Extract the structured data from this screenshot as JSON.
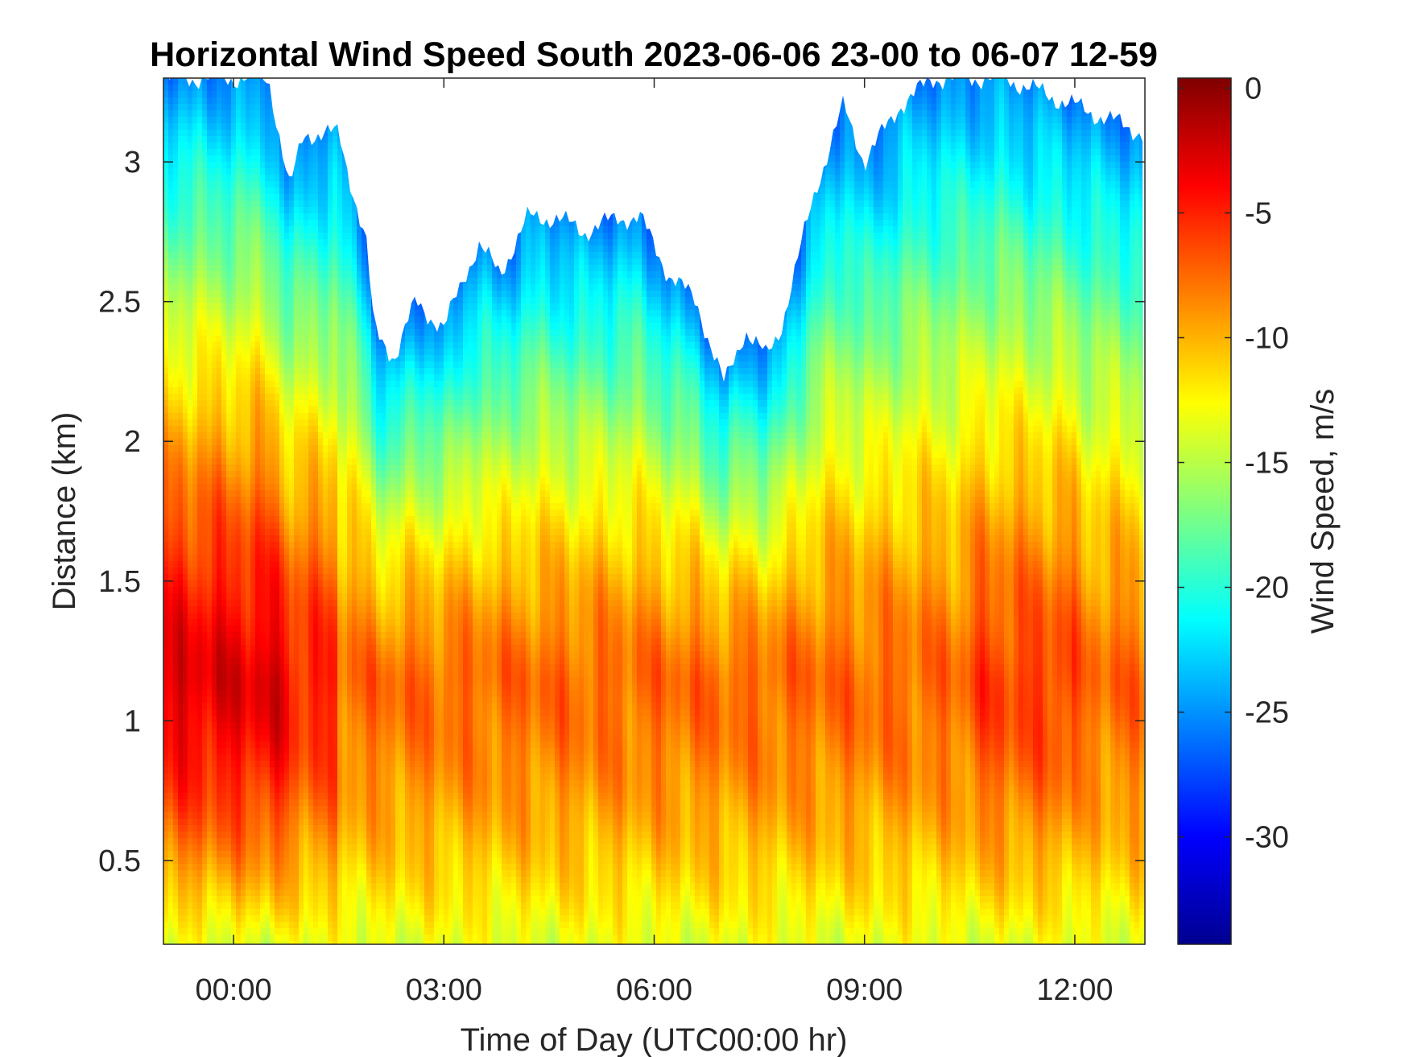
{
  "chart_data": {
    "type": "heatmap",
    "title": "Horizontal Wind Speed South 2023-06-06 23-00 to 06-07 12-59",
    "xlabel": "Time of Day (UTC00:00 hr)",
    "ylabel": "Distance (km)",
    "colorbar_label": "Wind Speed, m/s",
    "colormap": "jet",
    "x_ticks": [
      {
        "value": 0,
        "label": "00:00"
      },
      {
        "value": 3,
        "label": "03:00"
      },
      {
        "value": 6,
        "label": "06:00"
      },
      {
        "value": 9,
        "label": "09:00"
      },
      {
        "value": 12,
        "label": "12:00"
      }
    ],
    "y_ticks": [
      {
        "value": 0.5,
        "label": "0.5"
      },
      {
        "value": 1,
        "label": "1"
      },
      {
        "value": 1.5,
        "label": "1.5"
      },
      {
        "value": 2,
        "label": "2"
      },
      {
        "value": 2.5,
        "label": "2.5"
      },
      {
        "value": 3,
        "label": "3"
      }
    ],
    "colorbar_ticks": [
      {
        "value": 0,
        "label": "0"
      },
      {
        "value": -5,
        "label": "-5"
      },
      {
        "value": -10,
        "label": "-10"
      },
      {
        "value": -15,
        "label": "-15"
      },
      {
        "value": -20,
        "label": "-20"
      },
      {
        "value": -25,
        "label": "-25"
      },
      {
        "value": -30,
        "label": "-30"
      }
    ],
    "xlim": [
      -1,
      13
    ],
    "ylim": [
      0.2,
      3.3
    ],
    "clim": [
      -34.3,
      0.4
    ],
    "data_top_boundary_km": {
      "x": [
        -1,
        0.5,
        0.8,
        1.0,
        1.5,
        1.9,
        2.0,
        2.3,
        2.6,
        3.0,
        3.3,
        3.5,
        3.8,
        4.2,
        4.6,
        5.0,
        5.5,
        5.8,
        6.2,
        6.6,
        7.0,
        7.3,
        7.6,
        7.8,
        8.0,
        8.3,
        8.7,
        9.0,
        9.5,
        10.0,
        11.0,
        12.0,
        13.0
      ],
      "y": [
        3.3,
        3.3,
        2.9,
        3.1,
        3.1,
        2.7,
        2.4,
        2.3,
        2.5,
        2.4,
        2.6,
        2.7,
        2.6,
        2.8,
        2.8,
        2.75,
        2.8,
        2.8,
        2.6,
        2.5,
        2.2,
        2.4,
        2.3,
        2.4,
        2.6,
        2.9,
        3.2,
        3.0,
        3.2,
        3.3,
        3.3,
        3.2,
        3.1
      ]
    }
  }
}
